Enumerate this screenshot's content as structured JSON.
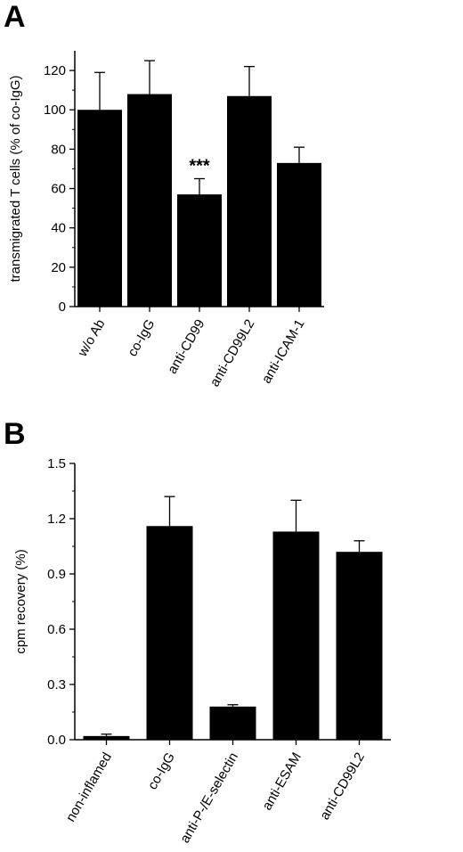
{
  "panels": {
    "a": {
      "letter": "A"
    },
    "b": {
      "letter": "B"
    }
  },
  "chart_data": [
    {
      "type": "bar",
      "title": "",
      "xlabel": "",
      "ylabel": "transmigrated T cells (% of co-IgG)",
      "categories": [
        "w/o Ab",
        "co-IgG",
        "anti-CD99",
        "anti-CD99L2",
        "anti-ICAM-1"
      ],
      "values": [
        100,
        108,
        57,
        107,
        73
      ],
      "errors": [
        19,
        17,
        8,
        15,
        8
      ],
      "annotations": [
        {
          "category": "anti-CD99",
          "text": "***"
        }
      ],
      "ylim": [
        0,
        130
      ],
      "yticks": [
        0,
        20,
        40,
        60,
        80,
        100,
        120
      ],
      "ytick_labels": [
        "0",
        "20",
        "40",
        "60",
        "80",
        "100",
        "120"
      ],
      "bar_color": "#000000",
      "grid": false
    },
    {
      "type": "bar",
      "title": "",
      "xlabel": "",
      "ylabel": "cpm recovery (%)",
      "categories": [
        "non-inflamed",
        "co-IgG",
        "anti-P-/E-selectin",
        "anti-ESAM",
        "anti-CD99L2"
      ],
      "values": [
        0.02,
        1.16,
        0.18,
        1.13,
        1.02
      ],
      "errors": [
        0.01,
        0.16,
        0.01,
        0.17,
        0.06
      ],
      "annotations": [],
      "ylim": [
        0,
        1.5
      ],
      "yticks": [
        0,
        0.3,
        0.6,
        0.9,
        1.2,
        1.5
      ],
      "ytick_labels": [
        "0.0",
        "0.3",
        "0.6",
        "0.9",
        "1.2",
        "1.5"
      ],
      "bar_color": "#000000",
      "grid": false
    }
  ]
}
